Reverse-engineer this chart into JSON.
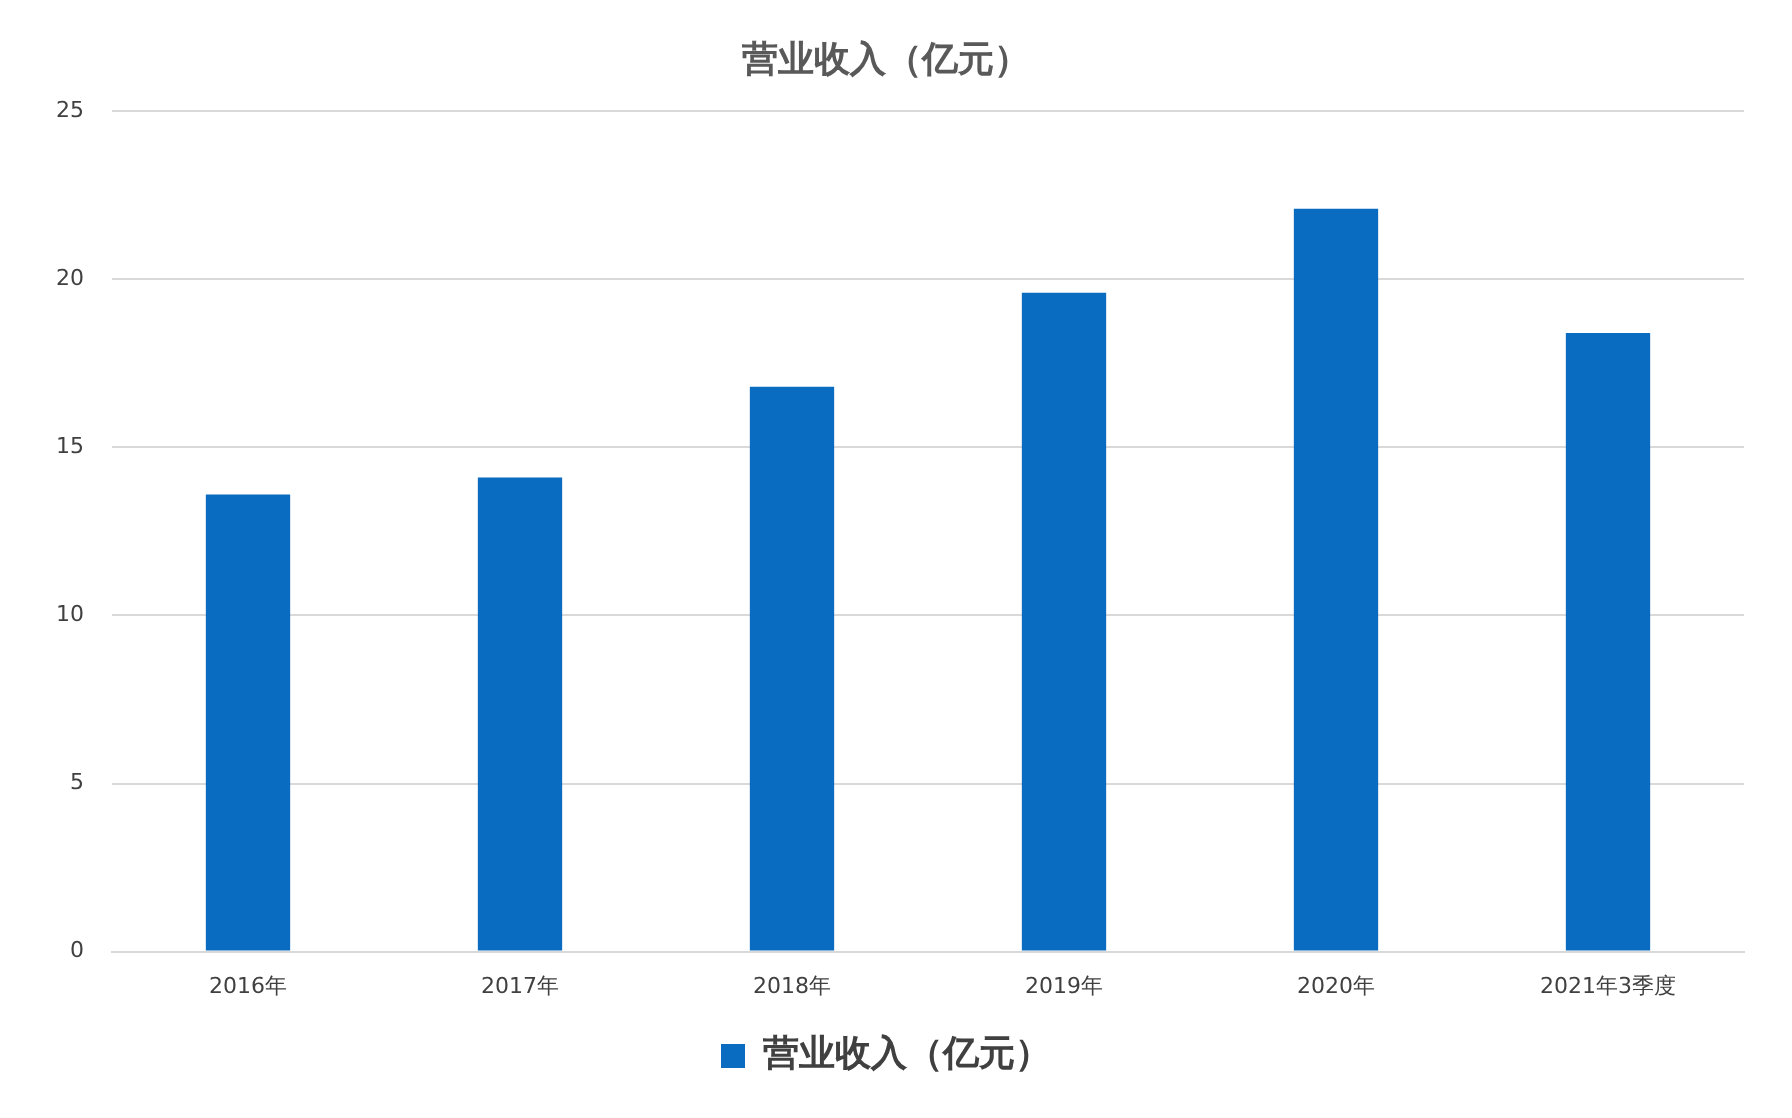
{
  "chart_data": {
    "type": "bar",
    "title": "营业收入（亿元）",
    "categories": [
      "2016年",
      "2017年",
      "2018年",
      "2019年",
      "2020年",
      "2021年3季度"
    ],
    "series": [
      {
        "name": "营业收入（亿元）",
        "color": "#0a6cc0",
        "values": [
          13.6,
          14.1,
          16.8,
          19.6,
          22.1,
          18.4
        ]
      }
    ],
    "ylim": [
      0,
      25
    ],
    "yticks": [
      0,
      5,
      10,
      15,
      20,
      25
    ],
    "grid": "y",
    "legend": "bottom"
  }
}
